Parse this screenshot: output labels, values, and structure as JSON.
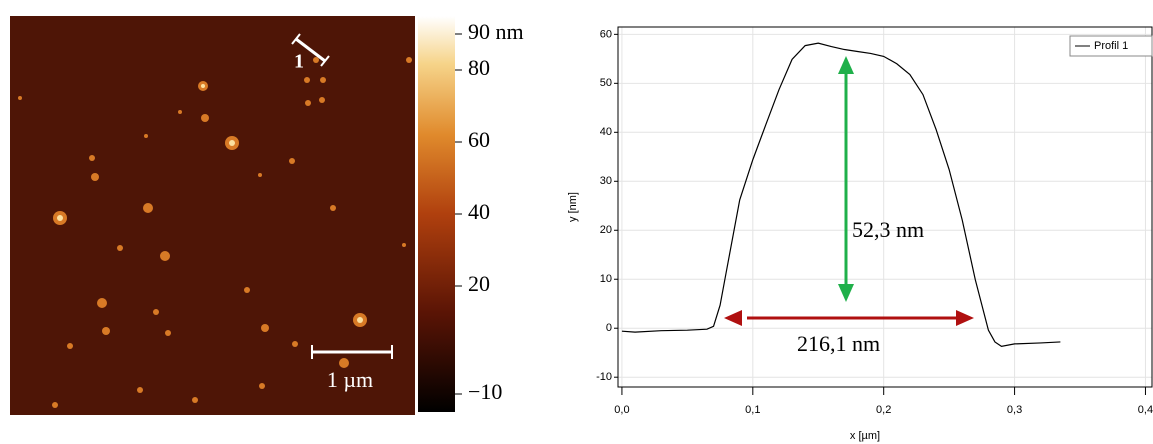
{
  "afm_image": {
    "profile_label": "1",
    "scale_bar_label": "1 µm"
  },
  "colorbar": {
    "ylim": [
      -15,
      95
    ],
    "ticks": [
      {
        "value": 90,
        "label": "90 nm"
      },
      80,
      60,
      40,
      20,
      {
        "value": -10,
        "label": "−10"
      }
    ]
  },
  "chart_data": {
    "type": "line",
    "x_label": "x [µm]",
    "y_label": "y [nm]",
    "x": [
      0.0,
      0.01,
      0.03,
      0.05,
      0.065,
      0.07,
      0.075,
      0.08,
      0.09,
      0.1,
      0.11,
      0.12,
      0.13,
      0.14,
      0.15,
      0.16,
      0.17,
      0.18,
      0.19,
      0.2,
      0.21,
      0.22,
      0.23,
      0.24,
      0.25,
      0.26,
      0.27,
      0.28,
      0.285,
      0.29,
      0.3,
      0.32,
      0.335
    ],
    "series": [
      {
        "name": "Profil 1",
        "color": "#000000",
        "values": [
          -0.6,
          -0.8,
          -0.5,
          -0.4,
          -0.2,
          0.4,
          4.7,
          11.9,
          26.2,
          34.4,
          41.6,
          48.7,
          54.9,
          57.7,
          58.2,
          57.5,
          56.9,
          56.5,
          56.1,
          55.5,
          54.0,
          51.8,
          47.7,
          40.6,
          32.4,
          22.1,
          9.9,
          -0.4,
          -2.8,
          -3.7,
          -3.2,
          -3.0,
          -2.8
        ]
      }
    ],
    "annotations": [
      "52,3 nm",
      "216,1 nm"
    ],
    "xlim": [
      -0.003,
      0.405
    ],
    "ylim": [
      -12,
      61.5
    ],
    "xticks": [
      {
        "value": 0,
        "label": "0,0"
      },
      {
        "value": 0.1,
        "label": "0,1"
      },
      {
        "value": 0.2,
        "label": "0,2"
      },
      {
        "value": 0.3,
        "label": "0,3"
      },
      {
        "value": 0.4,
        "label": "0,4"
      }
    ],
    "yticks": [
      -10,
      0,
      10,
      20,
      30,
      40,
      50,
      60
    ],
    "grid": true,
    "legend": "upper right"
  }
}
